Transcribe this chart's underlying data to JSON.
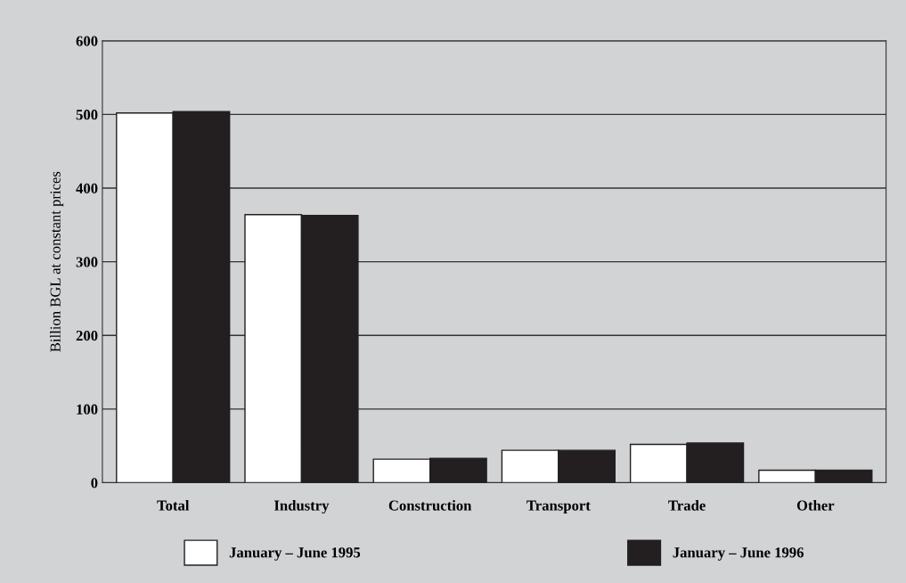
{
  "chart_data": {
    "type": "bar",
    "ylabel": "Billion BGL at constant prices",
    "categories": [
      "Total",
      "Industry",
      "Construction",
      "Transport",
      "Trade",
      "Other"
    ],
    "series": [
      {
        "name": "January – June 1995",
        "color": "#ffffff",
        "values": [
          502,
          364,
          32,
          44,
          52,
          17
        ]
      },
      {
        "name": "January – June 1996",
        "color": "#231f20",
        "values": [
          504,
          363,
          33,
          44,
          54,
          17
        ]
      }
    ],
    "ylim": [
      0,
      600
    ],
    "yticks": [
      0,
      100,
      200,
      300,
      400,
      500,
      600
    ],
    "grid": "y",
    "legend": "bottom"
  }
}
